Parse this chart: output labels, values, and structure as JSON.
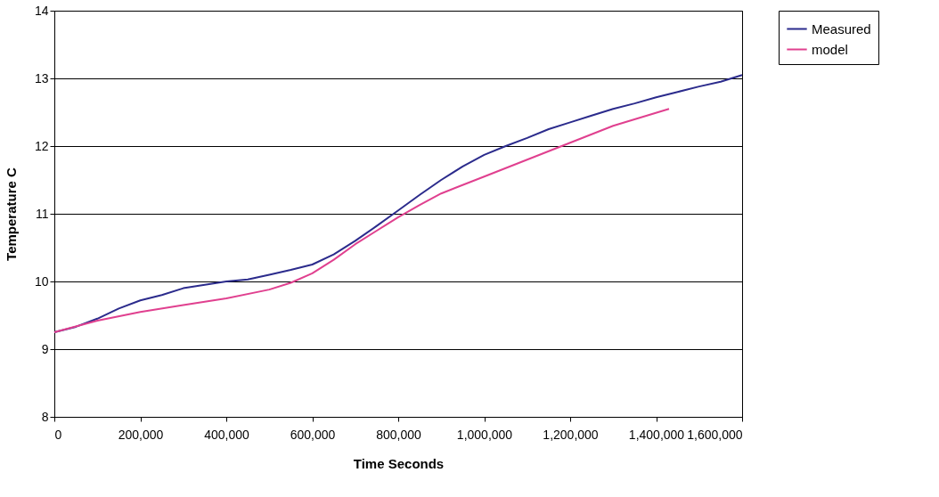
{
  "chart_data": {
    "type": "line",
    "xlabel": "Time Seconds",
    "ylabel": "Temperature C",
    "xlim": [
      0,
      1600000
    ],
    "xticks": [
      0,
      {
        "value": 200000,
        "label": "200,000"
      },
      {
        "value": 400000,
        "label": "400,000"
      },
      {
        "value": 600000,
        "label": "600,000"
      },
      {
        "value": 800000,
        "label": "800,000"
      },
      {
        "value": 1000000,
        "label": "1,000,000"
      },
      {
        "value": 1200000,
        "label": "1,200,000"
      },
      {
        "value": 1400000,
        "label": "1,400,000"
      },
      {
        "value": 1600000,
        "label": "1,600,000"
      }
    ],
    "ylim": [
      8,
      14
    ],
    "yticks": [
      8,
      9,
      10,
      11,
      12,
      13,
      14
    ],
    "grid": "y",
    "legend": "right",
    "marker": "none",
    "line_style": "solid",
    "series": [
      {
        "name": "Measured",
        "color": "#2b2b8c",
        "x": [
          0,
          50000,
          100000,
          150000,
          200000,
          250000,
          300000,
          350000,
          400000,
          450000,
          500000,
          550000,
          600000,
          650000,
          700000,
          750000,
          800000,
          850000,
          900000,
          950000,
          1000000,
          1050000,
          1100000,
          1150000,
          1200000,
          1250000,
          1300000,
          1350000,
          1400000,
          1450000,
          1500000,
          1550000,
          1600000
        ],
        "values": [
          9.25,
          9.33,
          9.45,
          9.6,
          9.72,
          9.8,
          9.9,
          9.95,
          10.0,
          10.03,
          10.1,
          10.17,
          10.25,
          10.4,
          10.6,
          10.82,
          11.05,
          11.28,
          11.5,
          11.7,
          11.87,
          12.0,
          12.12,
          12.25,
          12.35,
          12.45,
          12.55,
          12.63,
          12.72,
          12.8,
          12.88,
          12.95,
          13.05
        ]
      },
      {
        "name": "model",
        "color": "#e0408f",
        "x": [
          0,
          100000,
          200000,
          300000,
          400000,
          500000,
          550000,
          600000,
          650000,
          700000,
          750000,
          800000,
          850000,
          900000,
          1000000,
          1100000,
          1200000,
          1300000,
          1430000
        ],
        "values": [
          9.25,
          9.42,
          9.55,
          9.65,
          9.75,
          9.88,
          9.98,
          10.12,
          10.32,
          10.55,
          10.75,
          10.95,
          11.13,
          11.3,
          11.55,
          11.8,
          12.05,
          12.3,
          12.55
        ]
      }
    ]
  }
}
